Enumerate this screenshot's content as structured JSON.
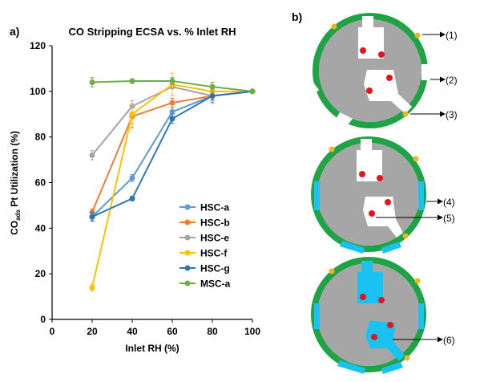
{
  "panel_a_label": "a)",
  "panel_b_label": "b)",
  "chart_data": {
    "type": "line",
    "title": "CO Stripping ECSA vs. % Inlet RH",
    "xlabel": "Inlet RH (%)",
    "ylabel_main": "CO",
    "ylabel_sub": "ads",
    "ylabel_rest": " Pt Utilization  (%)",
    "x_ticks": [
      0,
      20,
      40,
      60,
      80,
      100
    ],
    "y_ticks": [
      0,
      20,
      40,
      60,
      80,
      100,
      120
    ],
    "xlim": [
      0,
      100
    ],
    "ylim": [
      0,
      120
    ],
    "grid": false,
    "legend_position": "right",
    "x": [
      20,
      40,
      60,
      80,
      100
    ],
    "series": [
      {
        "name": "HSC-a",
        "color": "#5B9BD5",
        "values": [
          45,
          62,
          91,
          98,
          100
        ],
        "errors": [
          1.5,
          1.5,
          2,
          1.5,
          0.5
        ]
      },
      {
        "name": "HSC-b",
        "color": "#ED7D31",
        "values": [
          47,
          89,
          95,
          98,
          100
        ],
        "errors": [
          1.5,
          5,
          2,
          1.5,
          0.5
        ]
      },
      {
        "name": "HSC-e",
        "color": "#A5A5A5",
        "values": [
          72,
          93.5,
          102,
          98,
          100
        ],
        "errors": [
          2,
          2.5,
          4,
          2,
          0.5
        ]
      },
      {
        "name": "HSC-f",
        "color": "#FFC000",
        "values": [
          14,
          90,
          103,
          100,
          100
        ],
        "errors": [
          1.5,
          4,
          5,
          2,
          0.5
        ]
      },
      {
        "name": "HSC-g",
        "color": "#2E75B6",
        "values": [
          45,
          53,
          88,
          98,
          100
        ],
        "errors": [
          2,
          1,
          2,
          3,
          0.5
        ]
      },
      {
        "name": "MSC-a",
        "color": "#70AD47",
        "values": [
          104,
          104.5,
          104.5,
          102,
          100
        ],
        "errors": [
          2,
          1,
          1.5,
          2,
          0.5
        ]
      }
    ]
  },
  "diagram": {
    "colors": {
      "wall": "#1FA345",
      "body": "#A6A6A6",
      "dot": "#E8141B",
      "marker": "#F0B323",
      "water": "#19C2F0"
    },
    "callouts": [
      "(1)",
      "(2)",
      "(3)",
      "(4)",
      "(5)",
      "(6)"
    ]
  }
}
